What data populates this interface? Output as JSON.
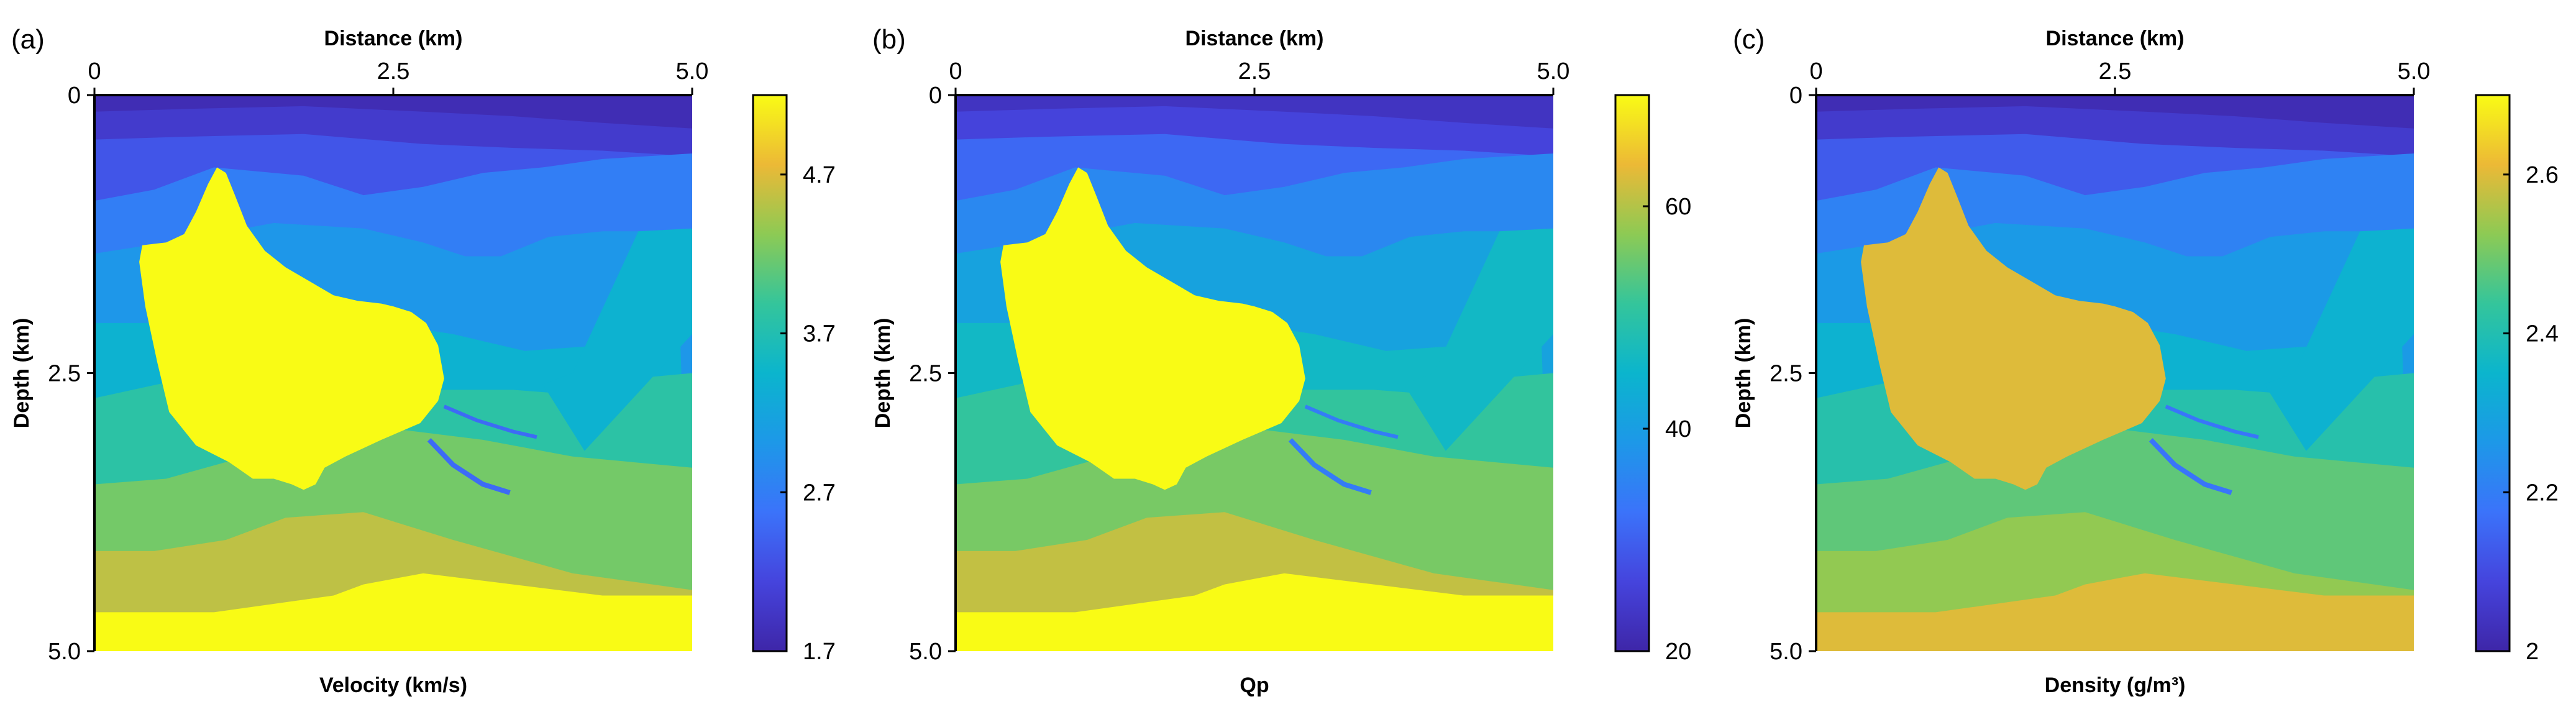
{
  "chart_data": [
    {
      "type": "heatmap",
      "panel_label": "(a)",
      "title": "",
      "xlabel": "Distance (km)",
      "ylabel": "Depth (km)",
      "xlim": [
        0,
        5.0
      ],
      "ylim": [
        0,
        5.0
      ],
      "xticks": [
        0,
        2.5,
        5.0
      ],
      "xtick_labels": [
        "0",
        "2.5",
        "5.0"
      ],
      "yticks": [
        0,
        2.5,
        5.0
      ],
      "ytick_labels": [
        "0",
        "2.5",
        "5.0"
      ],
      "colorbar": {
        "label": "Velocity (km/s)",
        "range": [
          1.7,
          5.2
        ],
        "ticks": [
          1.7,
          2.7,
          3.7,
          4.7
        ],
        "tick_labels": [
          "1.7",
          "2.7",
          "3.7",
          "4.7"
        ]
      },
      "layers": [
        {
          "name": "layer-1",
          "value": 1.8
        },
        {
          "name": "layer-2",
          "value": 2.0
        },
        {
          "name": "layer-3",
          "value": 2.3
        },
        {
          "name": "layer-4",
          "value": 2.7
        },
        {
          "name": "layer-5",
          "value": 3.0
        },
        {
          "name": "layer-6",
          "value": 3.4
        },
        {
          "name": "layer-7",
          "value": 3.8
        },
        {
          "name": "layer-8",
          "value": 4.2
        },
        {
          "name": "layer-9",
          "value": 4.55
        },
        {
          "name": "salt-body",
          "value": 5.2
        },
        {
          "name": "thin-layer",
          "value": 2.5
        }
      ]
    },
    {
      "type": "heatmap",
      "panel_label": "(b)",
      "title": "",
      "xlabel": "Distance (km)",
      "ylabel": "Depth (km)",
      "xlim": [
        0,
        5.0
      ],
      "ylim": [
        0,
        5.0
      ],
      "xticks": [
        0,
        2.5,
        5.0
      ],
      "xtick_labels": [
        "0",
        "2.5",
        "5.0"
      ],
      "yticks": [
        0,
        2.5,
        5.0
      ],
      "ytick_labels": [
        "0",
        "2.5",
        "5.0"
      ],
      "colorbar": {
        "label": "Qp",
        "range": [
          20,
          70
        ],
        "ticks": [
          20,
          40,
          60
        ],
        "tick_labels": [
          "20",
          "40",
          "60"
        ]
      },
      "layers": [
        {
          "name": "layer-1",
          "value": 23
        },
        {
          "name": "layer-2",
          "value": 26
        },
        {
          "name": "layer-3",
          "value": 31
        },
        {
          "name": "layer-4",
          "value": 36
        },
        {
          "name": "layer-5",
          "value": 41
        },
        {
          "name": "layer-6",
          "value": 46
        },
        {
          "name": "layer-7",
          "value": 51
        },
        {
          "name": "layer-8",
          "value": 56
        },
        {
          "name": "layer-9",
          "value": 61
        },
        {
          "name": "salt-body",
          "value": 70
        },
        {
          "name": "thin-layer",
          "value": 34
        }
      ]
    },
    {
      "type": "heatmap",
      "panel_label": "(c)",
      "title": "",
      "xlabel": "Distance (km)",
      "ylabel": "Depth (km)",
      "xlim": [
        0,
        5.0
      ],
      "ylim": [
        0,
        5.0
      ],
      "xticks": [
        0,
        2.5,
        5.0
      ],
      "xtick_labels": [
        "0",
        "2.5",
        "5.0"
      ],
      "yticks": [
        0,
        2.5,
        5.0
      ],
      "ytick_labels": [
        "0",
        "2.5",
        "5.0"
      ],
      "colorbar": {
        "label": "Density (g/m³)",
        "range": [
          2.0,
          2.7
        ],
        "ticks": [
          2.0,
          2.2,
          2.4,
          2.6
        ],
        "tick_labels": [
          "2",
          "2.2",
          "2.4",
          "2.6"
        ]
      },
      "layers": [
        {
          "name": "layer-1",
          "value": 2.02
        },
        {
          "name": "layer-2",
          "value": 2.06
        },
        {
          "name": "layer-3",
          "value": 2.13
        },
        {
          "name": "layer-4",
          "value": 2.21
        },
        {
          "name": "layer-5",
          "value": 2.27
        },
        {
          "name": "layer-6",
          "value": 2.34
        },
        {
          "name": "layer-7",
          "value": 2.41
        },
        {
          "name": "layer-8",
          "value": 2.48
        },
        {
          "name": "layer-9",
          "value": 2.53
        },
        {
          "name": "salt-body",
          "value": 2.6
        },
        {
          "name": "thin-layer",
          "value": 2.18
        }
      ]
    }
  ]
}
